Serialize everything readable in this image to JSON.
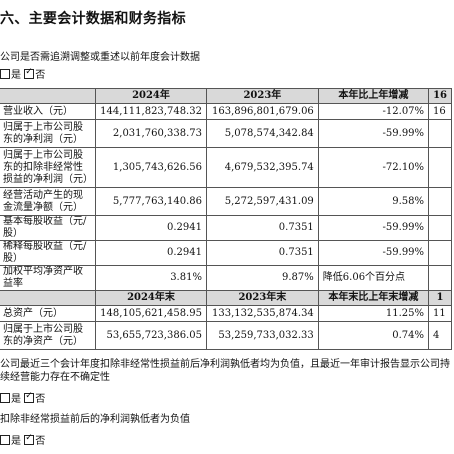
{
  "section_title": "六、主要会计数据和财务指标",
  "question1": "公司是否需追溯调整或重述以前年度会计数据",
  "q1_options": {
    "yes": "是",
    "no": "否"
  },
  "table": {
    "header1": [
      "",
      "2024年",
      "2023年",
      "本年比上年增减",
      "16"
    ],
    "rows1": [
      {
        "label": "营业收入（元）",
        "c2024": "144,111,823,748.32",
        "c2023": "163,896,801,679.06",
        "change": "-12.07%",
        "extra": "16"
      },
      {
        "label": "归属于上市公司股东的净利润（元）",
        "c2024": "2,031,760,338.73",
        "c2023": "5,078,574,342.84",
        "change": "-59.99%",
        "extra": ""
      },
      {
        "label": "归属于上市公司股东的扣除非经常性损益的净利润（元）",
        "c2024": "1,305,743,626.56",
        "c2023": "4,679,532,395.74",
        "change": "-72.10%",
        "extra": ""
      },
      {
        "label": "经营活动产生的现金流量净额（元）",
        "c2024": "5,777,763,140.86",
        "c2023": "5,272,597,431.09",
        "change": "9.58%",
        "extra": ""
      },
      {
        "label": "基本每股收益（元/股）",
        "c2024": "0.2941",
        "c2023": "0.7351",
        "change": "-59.99%",
        "extra": ""
      },
      {
        "label": "稀释每股收益（元/股）",
        "c2024": "0.2941",
        "c2023": "0.7351",
        "change": "-59.99%",
        "extra": ""
      },
      {
        "label": "加权平均净资产收益率",
        "c2024": "3.81%",
        "c2023": "9.87%",
        "change": "降低6.06个百分点",
        "extra": ""
      }
    ],
    "header2": [
      "",
      "2024年末",
      "2023年末",
      "本年末比上年末增减",
      "1"
    ],
    "rows2": [
      {
        "label": "总资产（元）",
        "c2024": "148,105,621,458.95",
        "c2023": "133,132,535,874.34",
        "change": "11.25%",
        "extra": "11"
      },
      {
        "label": "归属于上市公司股东的净资产（元）",
        "c2024": "53,655,723,386.05",
        "c2023": "53,259,733,032.33",
        "change": "0.74%",
        "extra": "4"
      }
    ]
  },
  "note1": "公司最近三个会计年度扣除非经常性损益前后净利润孰低者均为负值，且最近一年审计报告显示公司持续经营能力存在不确定性",
  "q2_options": {
    "yes": "是",
    "no": "否"
  },
  "note2": "扣除非经常损益前后的净利润孰低者为负值",
  "q3_options": {
    "yes": "是",
    "no": "否"
  }
}
